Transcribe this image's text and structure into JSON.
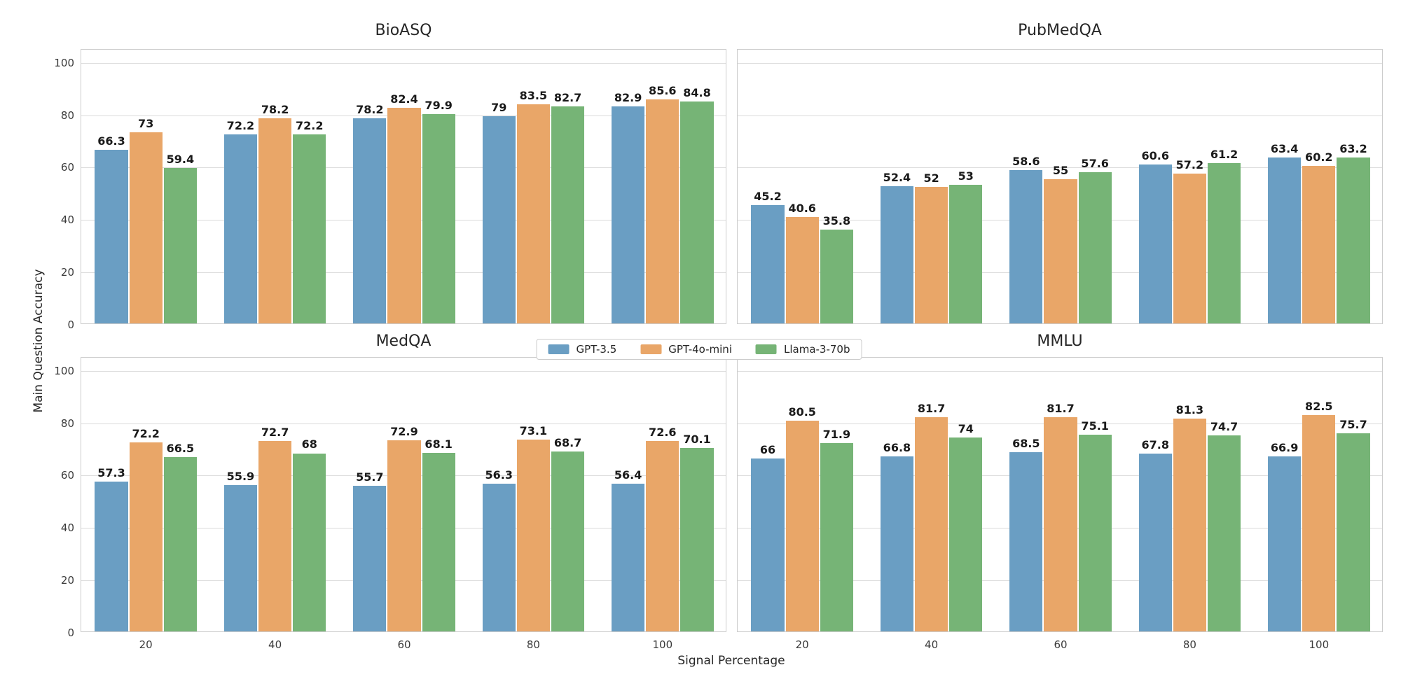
{
  "figure": {
    "ylabel": "Main Question Accuracy",
    "xlabel": "Signal Percentage",
    "background": "#ffffff",
    "gridline_color": "#dcdcdc",
    "spine_color": "#cccccc"
  },
  "legend": {
    "position": "center-between-rows",
    "entries": [
      {
        "label": "GPT-3.5",
        "color": "#6A9EC3"
      },
      {
        "label": "GPT-4o-mini",
        "color": "#E9A668"
      },
      {
        "label": "Llama-3-70b",
        "color": "#76B476"
      }
    ]
  },
  "chart_data": [
    {
      "type": "bar",
      "title": "BioASQ",
      "grid": true,
      "categories": [
        "20",
        "40",
        "60",
        "80",
        "100"
      ],
      "yticks": [
        0,
        20,
        40,
        60,
        80,
        100
      ],
      "ylim": [
        0,
        105
      ],
      "series": [
        {
          "name": "GPT-3.5",
          "color": "#6A9EC3",
          "values": [
            66.3,
            72.2,
            78.2,
            79,
            82.9
          ]
        },
        {
          "name": "GPT-4o-mini",
          "color": "#E9A668",
          "values": [
            73,
            78.2,
            82.4,
            83.5,
            85.6
          ]
        },
        {
          "name": "Llama-3-70b",
          "color": "#76B476",
          "values": [
            59.4,
            72.2,
            79.9,
            82.7,
            84.8
          ]
        }
      ]
    },
    {
      "type": "bar",
      "title": "PubMedQA",
      "grid": true,
      "categories": [
        "20",
        "40",
        "60",
        "80",
        "100"
      ],
      "yticks": [
        0,
        20,
        40,
        60,
        80,
        100
      ],
      "ylim": [
        0,
        105
      ],
      "series": [
        {
          "name": "GPT-3.5",
          "color": "#6A9EC3",
          "values": [
            45.2,
            52.4,
            58.6,
            60.6,
            63.4
          ]
        },
        {
          "name": "GPT-4o-mini",
          "color": "#E9A668",
          "values": [
            40.6,
            52,
            55,
            57.2,
            60.2
          ]
        },
        {
          "name": "Llama-3-70b",
          "color": "#76B476",
          "values": [
            35.8,
            53,
            57.6,
            61.2,
            63.2
          ]
        }
      ]
    },
    {
      "type": "bar",
      "title": "MedQA",
      "grid": true,
      "categories": [
        "20",
        "40",
        "60",
        "80",
        "100"
      ],
      "yticks": [
        0,
        20,
        40,
        60,
        80,
        100
      ],
      "ylim": [
        0,
        105
      ],
      "series": [
        {
          "name": "GPT-3.5",
          "color": "#6A9EC3",
          "values": [
            57.3,
            55.9,
            55.7,
            56.3,
            56.4
          ]
        },
        {
          "name": "GPT-4o-mini",
          "color": "#E9A668",
          "values": [
            72.2,
            72.7,
            72.9,
            73.1,
            72.6
          ]
        },
        {
          "name": "Llama-3-70b",
          "color": "#76B476",
          "values": [
            66.5,
            68,
            68.1,
            68.7,
            70.1
          ]
        }
      ]
    },
    {
      "type": "bar",
      "title": "MMLU",
      "grid": true,
      "categories": [
        "20",
        "40",
        "60",
        "80",
        "100"
      ],
      "yticks": [
        0,
        20,
        40,
        60,
        80,
        100
      ],
      "ylim": [
        0,
        105
      ],
      "series": [
        {
          "name": "GPT-3.5",
          "color": "#6A9EC3",
          "values": [
            66,
            66.8,
            68.5,
            67.8,
            66.9
          ]
        },
        {
          "name": "GPT-4o-mini",
          "color": "#E9A668",
          "values": [
            80.5,
            81.7,
            81.7,
            81.3,
            82.5
          ]
        },
        {
          "name": "Llama-3-70b",
          "color": "#76B476",
          "values": [
            71.9,
            74,
            75.1,
            74.7,
            75.7
          ]
        }
      ]
    }
  ]
}
